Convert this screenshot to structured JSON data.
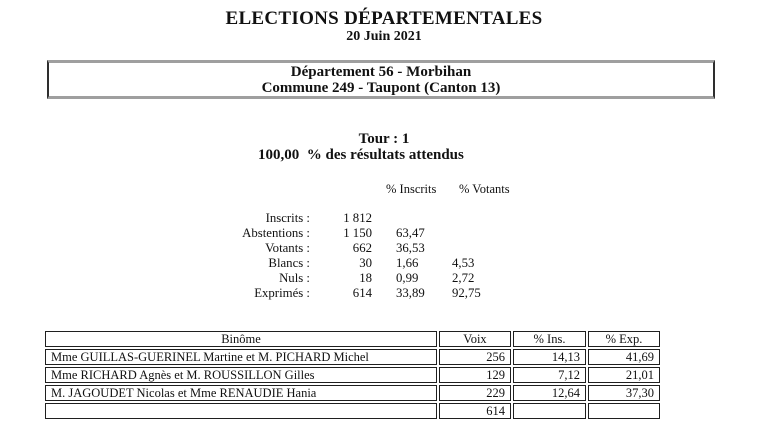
{
  "header": {
    "title": "ELECTIONS DÉPARTEMENTALES",
    "date": "20 Juin 2021"
  },
  "location": {
    "department": "Département 56 - Morbihan",
    "commune": "Commune 249 - Taupont (Canton 13)"
  },
  "tour": {
    "round": "Tour : 1",
    "progress": "100,00  % des résultats attendus"
  },
  "participation": {
    "col_inscrits_header": "% Inscrits",
    "col_votants_header": "% Votants",
    "rows": [
      {
        "label": "Inscrits :",
        "value": "1 812",
        "pct_inscrits": "",
        "pct_votants": ""
      },
      {
        "label": "Abstentions :",
        "value": "1 150",
        "pct_inscrits": "63,47",
        "pct_votants": ""
      },
      {
        "label": "Votants :",
        "value": "662",
        "pct_inscrits": "36,53",
        "pct_votants": ""
      },
      {
        "label": "Blancs :",
        "value": "30",
        "pct_inscrits": "1,66",
        "pct_votants": "4,53"
      },
      {
        "label": "Nuls :",
        "value": "18",
        "pct_inscrits": "0,99",
        "pct_votants": "2,72"
      },
      {
        "label": "Exprimés :",
        "value": "614",
        "pct_inscrits": "33,89",
        "pct_votants": "92,75"
      }
    ]
  },
  "results": {
    "headers": {
      "binome": "Binôme",
      "voix": "Voix",
      "pct_ins": "% Ins.",
      "pct_exp": "% Exp."
    },
    "rows": [
      {
        "binome": "Mme GUILLAS-GUERINEL Martine et M. PICHARD Michel",
        "voix": "256",
        "pct_ins": "14,13",
        "pct_exp": "41,69"
      },
      {
        "binome": "Mme RICHARD Agnès et M. ROUSSILLON Gilles",
        "voix": "129",
        "pct_ins": "7,12",
        "pct_exp": "21,01"
      },
      {
        "binome": "M. JAGOUDET Nicolas et Mme RENAUDIE Hania",
        "voix": "229",
        "pct_ins": "12,64",
        "pct_exp": "37,30"
      }
    ],
    "total_voix": "614"
  },
  "colors": {
    "text": "#111111",
    "box_border_gray": "#9f9f9f",
    "box_border_dark": "#2e2e2e",
    "table_border": "#1f1f1f"
  }
}
